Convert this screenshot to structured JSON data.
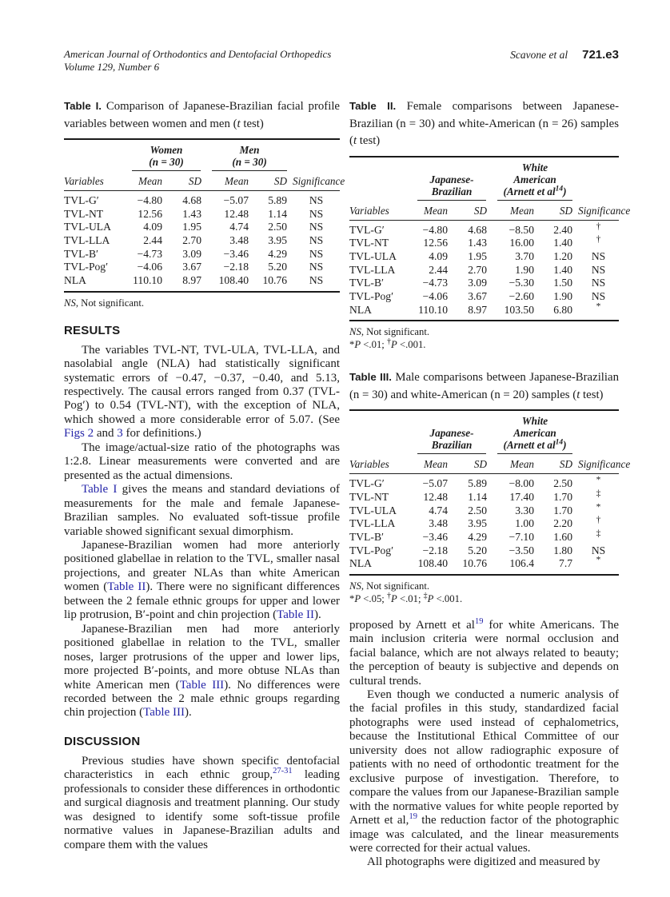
{
  "header": {
    "journal_line1": "American Journal of Orthodontics and Dentofacial Orthopedics",
    "journal_line2": "Volume 129, Number 6",
    "authors": "Scavone et al",
    "page_number": "721.e3"
  },
  "table1": {
    "caption": [
      {
        "t": "Table I.",
        "s": "caplabel"
      },
      {
        "t": " Comparison of Japanese-Brazilian facial profile variables between women and men ("
      },
      {
        "t": "t",
        "s": "i"
      },
      {
        "t": " test)"
      }
    ],
    "group_left": [
      {
        "t": "Women\n(n = 30)",
        "s": "i"
      }
    ],
    "group_right": [
      {
        "t": "Men\n(n = 30)",
        "s": "i"
      }
    ],
    "col_headers": [
      "Variables",
      "Mean",
      "SD",
      "Mean",
      "SD",
      "Significance"
    ],
    "rows": [
      [
        "TVL-G′",
        "−4.80",
        "4.68",
        "−5.07",
        "5.89",
        "NS"
      ],
      [
        "TVL-NT",
        "12.56",
        "1.43",
        "12.48",
        "1.14",
        "NS"
      ],
      [
        "TVL-ULA",
        "4.09",
        "1.95",
        "4.74",
        "2.50",
        "NS"
      ],
      [
        "TVL-LLA",
        "2.44",
        "2.70",
        "3.48",
        "3.95",
        "NS"
      ],
      [
        "TVL-B′",
        "−4.73",
        "3.09",
        "−3.46",
        "4.29",
        "NS"
      ],
      [
        "TVL-Pog′",
        "−4.06",
        "3.67",
        "−2.18",
        "5.20",
        "NS"
      ],
      [
        "NLA",
        "110.10",
        "8.97",
        "108.40",
        "10.76",
        "NS"
      ]
    ],
    "footnotes": [
      [
        {
          "t": "NS",
          "s": "i"
        },
        {
          "t": ", Not significant."
        }
      ]
    ]
  },
  "table2": {
    "caption": [
      {
        "t": "Table II.",
        "s": "caplabel"
      },
      {
        "t": " Female comparisons between Japanese-Brazilian (n = 30) and white-American (n = 26) samples ("
      },
      {
        "t": "t",
        "s": "i"
      },
      {
        "t": " test)"
      }
    ],
    "group_left": [
      {
        "t": "Japanese-\nBrazilian",
        "s": "i"
      }
    ],
    "group_right": [
      {
        "t": "White\nAmerican\n(Arnett et al",
        "s": "i"
      },
      {
        "t": "14",
        "s": "isup"
      },
      {
        "t": ")",
        "s": "i"
      }
    ],
    "col_headers": [
      "Variables",
      "Mean",
      "SD",
      "Mean",
      "SD",
      "Significance"
    ],
    "rows": [
      [
        "TVL-G′",
        "−4.80",
        "4.68",
        "−8.50",
        "2.40",
        "†"
      ],
      [
        "TVL-NT",
        "12.56",
        "1.43",
        "16.00",
        "1.40",
        "†"
      ],
      [
        "TVL-ULA",
        "4.09",
        "1.95",
        "3.70",
        "1.20",
        "NS"
      ],
      [
        "TVL-LLA",
        "2.44",
        "2.70",
        "1.90",
        "1.40",
        "NS"
      ],
      [
        "TVL-B′",
        "−4.73",
        "3.09",
        "−5.30",
        "1.50",
        "NS"
      ],
      [
        "TVL-Pog′",
        "−4.06",
        "3.67",
        "−2.60",
        "1.90",
        "NS"
      ],
      [
        "NLA",
        "110.10",
        "8.97",
        "103.50",
        "6.80",
        "*"
      ]
    ],
    "footnotes": [
      [
        {
          "t": "NS",
          "s": "i"
        },
        {
          "t": ", Not significant."
        }
      ],
      [
        {
          "t": "*"
        },
        {
          "t": "P",
          "s": "i"
        },
        {
          "t": " <.01; "
        },
        {
          "t": "†",
          "s": "sup"
        },
        {
          "t": "P",
          "s": "i"
        },
        {
          "t": " <.001."
        }
      ]
    ]
  },
  "table3": {
    "caption": [
      {
        "t": "Table III.",
        "s": "caplabel"
      },
      {
        "t": " Male comparisons between Japanese-Brazilian (n = 30) and white-American (n = 20) samples ("
      },
      {
        "t": "t",
        "s": "i"
      },
      {
        "t": " test)"
      }
    ],
    "group_left": [
      {
        "t": "Japanese-\nBrazilian",
        "s": "i"
      }
    ],
    "group_right": [
      {
        "t": "White\nAmerican\n(Arnett et al",
        "s": "i"
      },
      {
        "t": "14",
        "s": "isup"
      },
      {
        "t": ")",
        "s": "i"
      }
    ],
    "col_headers": [
      "Variables",
      "Mean",
      "SD",
      "Mean",
      "SD",
      "Significance"
    ],
    "rows": [
      [
        "TVL-G′",
        "−5.07",
        "5.89",
        "−8.00",
        "2.50",
        "*"
      ],
      [
        "TVL-NT",
        "12.48",
        "1.14",
        "17.40",
        "1.70",
        "‡"
      ],
      [
        "TVL-ULA",
        "4.74",
        "2.50",
        "3.30",
        "1.70",
        "*"
      ],
      [
        "TVL-LLA",
        "3.48",
        "3.95",
        "1.00",
        "2.20",
        "†"
      ],
      [
        "TVL-B′",
        "−3.46",
        "4.29",
        "−7.10",
        "1.60",
        "‡"
      ],
      [
        "TVL-Pog′",
        "−2.18",
        "5.20",
        "−3.50",
        "1.80",
        "NS"
      ],
      [
        "NLA",
        "108.40",
        "10.76",
        "106.4",
        "7.7",
        "*"
      ]
    ],
    "footnotes": [
      [
        {
          "t": "NS",
          "s": "i"
        },
        {
          "t": ", Not significant."
        }
      ],
      [
        {
          "t": "*"
        },
        {
          "t": "P",
          "s": "i"
        },
        {
          "t": " <.05; "
        },
        {
          "t": "†",
          "s": "sup"
        },
        {
          "t": "P",
          "s": "i"
        },
        {
          "t": " <.01; "
        },
        {
          "t": "‡",
          "s": "sup"
        },
        {
          "t": "P",
          "s": "i"
        },
        {
          "t": " <.001."
        }
      ]
    ]
  },
  "results": {
    "heading": "RESULTS",
    "paragraphs": [
      [
        {
          "t": "The variables TVL-NT, TVL-ULA, TVL-LLA, and nasolabial angle (NLA) had statistically significant systematic errors of −0.47, −0.37, −0.40, and 5.13, respectively. The causal errors ranged from 0.37 (TVL-Pog′) to 0.54 (TVL-NT), with the exception of NLA, which showed a more considerable error of 5.07. (See "
        },
        {
          "t": "Figs 2",
          "s": "link"
        },
        {
          "t": " and "
        },
        {
          "t": "3",
          "s": "link"
        },
        {
          "t": " for definitions.)"
        }
      ],
      [
        {
          "t": "The image/actual-size ratio of the photographs was 1:2.8. Linear measurements were converted and are presented as the actual dimensions."
        }
      ],
      [
        {
          "t": "Table I",
          "s": "link"
        },
        {
          "t": " gives the means and standard deviations of measurements for the male and female Japanese-Brazilian samples. No evaluated soft-tissue profile variable showed significant sexual dimorphism."
        }
      ],
      [
        {
          "t": "Japanese-Brazilian women had more anteriorly positioned glabellae in relation to the TVL, smaller nasal projections, and greater NLAs than white American women ("
        },
        {
          "t": "Table II",
          "s": "link"
        },
        {
          "t": "). There were no significant differences between the 2 female ethnic groups for upper and lower lip protrusion, B′-point and chin projection ("
        },
        {
          "t": "Table II",
          "s": "link"
        },
        {
          "t": ")."
        }
      ],
      [
        {
          "t": "Japanese-Brazilian men had more anteriorly positioned glabellae in relation to the TVL, smaller noses, larger protrusions of the upper and lower lips, more projected B′-points, and more obtuse NLAs than white American men ("
        },
        {
          "t": "Table III",
          "s": "link"
        },
        {
          "t": "). No differences were recorded between the 2 male ethnic groups regarding chin projection ("
        },
        {
          "t": "Table III",
          "s": "link"
        },
        {
          "t": ")."
        }
      ]
    ]
  },
  "discussion": {
    "heading": "DISCUSSION",
    "paragraphs": [
      [
        {
          "t": "Previous studies have shown specific dentofacial characteristics in each ethnic group,"
        },
        {
          "t": "27-31",
          "s": "suplink"
        },
        {
          "t": " leading professionals to consider these differences in orthodontic and surgical diagnosis and treatment planning. Our study was designed to identify some soft-tissue profile normative values in Japanese-Brazilian adults and compare them with the values"
        }
      ]
    ]
  },
  "right_column": {
    "paragraphs": [
      [
        {
          "t": "proposed by Arnett et al"
        },
        {
          "t": "19",
          "s": "suplink"
        },
        {
          "t": " for white Americans. The main inclusion criteria were normal occlusion and facial balance, which are not always related to beauty; the perception of beauty is subjective and depends on cultural trends."
        }
      ],
      [
        {
          "t": "Even though we conducted a numeric analysis of the facial profiles in this study, standardized facial photographs were used instead of cephalometrics, because the Institutional Ethical Committee of our university does not allow radiographic exposure of patients with no need of orthodontic treatment for the exclusive purpose of investigation. Therefore, to compare the values from our Japanese-Brazilian sample with the normative values for white people reported by Arnett et al,"
        },
        {
          "t": "19",
          "s": "suplink"
        },
        {
          "t": " the reduction factor of the photographic image was calculated, and the linear measurements were corrected for their actual values."
        }
      ],
      [
        {
          "t": "All photographs were digitized and measured by"
        }
      ]
    ]
  }
}
